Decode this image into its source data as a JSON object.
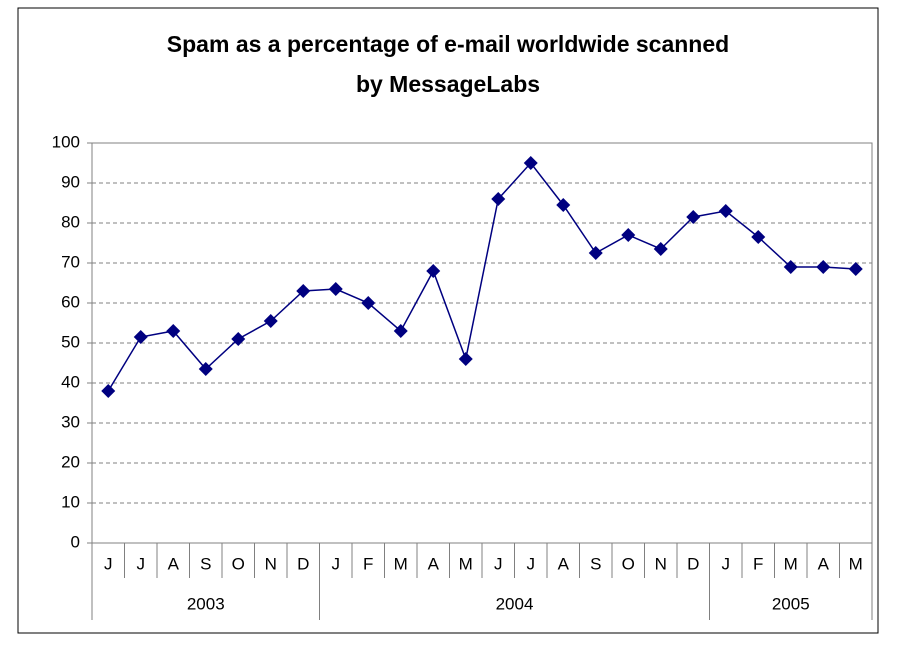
{
  "chart_data": {
    "type": "line",
    "title": "Spam as a percentage of e-mail worldwide scanned",
    "subtitle": "by MessageLabs",
    "groups": [
      {
        "label": "2003",
        "categories": [
          "J",
          "J",
          "A",
          "S",
          "O",
          "N",
          "D"
        ]
      },
      {
        "label": "2004",
        "categories": [
          "J",
          "F",
          "M",
          "A",
          "M",
          "J",
          "J",
          "A",
          "S",
          "O",
          "N",
          "D"
        ]
      },
      {
        "label": "2005",
        "categories": [
          "J",
          "F",
          "M",
          "A",
          "M"
        ]
      }
    ],
    "series": [
      {
        "name": "Spam",
        "color": "#000080",
        "values": [
          38,
          51.5,
          53,
          43.5,
          51,
          55.5,
          63,
          63.5,
          60,
          53,
          68,
          46,
          86,
          95,
          84.5,
          72.5,
          77,
          73.5,
          81.5,
          83,
          76.5,
          69,
          69,
          68.5
        ]
      }
    ],
    "ylim": [
      0,
      100
    ],
    "yticks": [
      0,
      10,
      20,
      30,
      40,
      50,
      60,
      70,
      80,
      90,
      100
    ],
    "grid": true
  }
}
